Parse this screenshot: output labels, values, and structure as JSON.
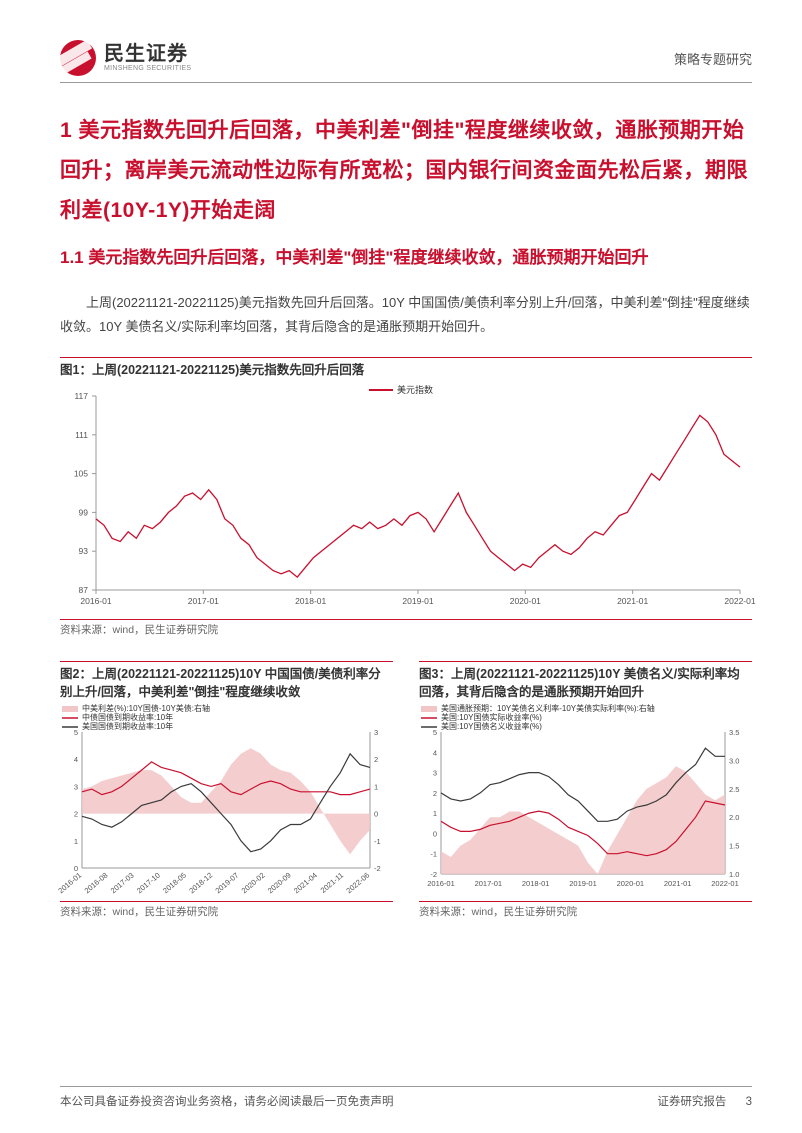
{
  "header": {
    "brand_cn": "民生证券",
    "brand_en": "MINSHENG SECURITIES",
    "doc_type": "策略专题研究"
  },
  "section_title": "1 美元指数先回升后回落，中美利差\"倒挂\"程度继续收敛，通胀预期开始回升；离岸美元流动性边际有所宽松；国内银行间资金面先松后紧，期限利差(10Y-1Y)开始走阔",
  "subsection_title": "1.1 美元指数先回升后回落，中美利差\"倒挂\"程度继续收敛，通胀预期开始回升",
  "paragraph": "上周(20221121-20221125)美元指数先回升后回落。10Y 中国国债/美债利率分别上升/回落，中美利差\"倒挂\"程度继续收敛。10Y 美债名义/实际利率均回落，其背后隐含的是通胀预期开始回升。",
  "fig1": {
    "title": "图1：上周(20221121-20221125)美元指数先回升后回落",
    "legend": "美元指数",
    "source": "资料来源：wind，民生证券研究院",
    "type": "line",
    "ylim": [
      87,
      117
    ],
    "ytick_step": 6,
    "x_labels": [
      "2016-01",
      "2017-01",
      "2018-01",
      "2019-01",
      "2020-01",
      "2021-01",
      "2022-01"
    ],
    "line_color": "#c8102e",
    "grid_color": "none",
    "axis_color": "#999",
    "label_fontsize": 9,
    "tick_fontsize": 8.5,
    "series": [
      [
        0,
        98
      ],
      [
        2,
        97
      ],
      [
        4,
        95
      ],
      [
        6,
        94.5
      ],
      [
        8,
        96
      ],
      [
        10,
        95
      ],
      [
        12,
        97
      ],
      [
        14,
        96.5
      ],
      [
        16,
        97.5
      ],
      [
        18,
        99
      ],
      [
        20,
        100
      ],
      [
        22,
        101.5
      ],
      [
        24,
        102
      ],
      [
        26,
        101
      ],
      [
        28,
        102.5
      ],
      [
        30,
        101
      ],
      [
        32,
        98
      ],
      [
        34,
        97
      ],
      [
        36,
        95
      ],
      [
        38,
        94
      ],
      [
        40,
        92
      ],
      [
        42,
        91
      ],
      [
        44,
        90
      ],
      [
        46,
        89.5
      ],
      [
        48,
        90
      ],
      [
        50,
        89
      ],
      [
        52,
        90.5
      ],
      [
        54,
        92
      ],
      [
        56,
        93
      ],
      [
        58,
        94
      ],
      [
        60,
        95
      ],
      [
        62,
        96
      ],
      [
        64,
        97
      ],
      [
        66,
        96.5
      ],
      [
        68,
        97.5
      ],
      [
        70,
        96.5
      ],
      [
        72,
        97
      ],
      [
        74,
        98
      ],
      [
        76,
        97
      ],
      [
        78,
        98.5
      ],
      [
        80,
        99
      ],
      [
        82,
        98
      ],
      [
        84,
        96
      ],
      [
        86,
        98
      ],
      [
        88,
        100
      ],
      [
        90,
        102
      ],
      [
        92,
        99
      ],
      [
        94,
        97
      ],
      [
        96,
        95
      ],
      [
        98,
        93
      ],
      [
        100,
        92
      ],
      [
        102,
        91
      ],
      [
        104,
        90
      ],
      [
        106,
        91
      ],
      [
        108,
        90.5
      ],
      [
        110,
        92
      ],
      [
        112,
        93
      ],
      [
        114,
        94
      ],
      [
        116,
        93
      ],
      [
        118,
        92.5
      ],
      [
        120,
        93.5
      ],
      [
        122,
        95
      ],
      [
        124,
        96
      ],
      [
        126,
        95.5
      ],
      [
        128,
        97
      ],
      [
        130,
        98.5
      ],
      [
        132,
        99
      ],
      [
        134,
        101
      ],
      [
        136,
        103
      ],
      [
        138,
        105
      ],
      [
        140,
        104
      ],
      [
        142,
        106
      ],
      [
        144,
        108
      ],
      [
        146,
        110
      ],
      [
        148,
        112
      ],
      [
        150,
        114
      ],
      [
        152,
        113
      ],
      [
        154,
        111
      ],
      [
        156,
        108
      ],
      [
        158,
        107
      ],
      [
        160,
        106
      ]
    ]
  },
  "fig2": {
    "title": "图2：上周(20221121-20221125)10Y 中国国债/美债利率分别上升/回落，中美利差\"倒挂\"程度继续收敛",
    "source": "资料来源：wind，民生证券研究院",
    "type": "line+area",
    "legend": {
      "a": "中美利差(%):10Y国债-10Y美债:右轴",
      "b": "中债国债到期收益率:10年",
      "c": "美国国债到期收益率:10年"
    },
    "ylim_left": [
      0,
      5
    ],
    "ytick_left": [
      0,
      1,
      2,
      3,
      4,
      5
    ],
    "ylim_right": [
      -2,
      3
    ],
    "ytick_right": [
      -2,
      -1,
      0,
      1,
      2,
      3
    ],
    "x_labels": [
      "2016-01",
      "2016-08",
      "2017-03",
      "2017-10",
      "2018-05",
      "2018-12",
      "2019-07",
      "2020-02",
      "2020-09",
      "2021-04",
      "2021-11",
      "2022-06"
    ],
    "area_color": "#f2c6c6",
    "line_b_color": "#c8102e",
    "line_c_color": "#3a3a3a",
    "axis_color": "#999",
    "tick_fontsize": 7.5,
    "legend_fontsize": 8,
    "area_series": [
      [
        0,
        0.9
      ],
      [
        5,
        1.0
      ],
      [
        10,
        1.2
      ],
      [
        15,
        1.3
      ],
      [
        20,
        1.4
      ],
      [
        25,
        1.5
      ],
      [
        30,
        1.6
      ],
      [
        35,
        1.6
      ],
      [
        40,
        1.4
      ],
      [
        45,
        1.0
      ],
      [
        50,
        0.6
      ],
      [
        55,
        0.4
      ],
      [
        60,
        0.4
      ],
      [
        65,
        0.8
      ],
      [
        70,
        1.2
      ],
      [
        75,
        1.8
      ],
      [
        80,
        2.2
      ],
      [
        85,
        2.4
      ],
      [
        90,
        2.2
      ],
      [
        95,
        1.8
      ],
      [
        100,
        1.6
      ],
      [
        105,
        1.5
      ],
      [
        110,
        1.2
      ],
      [
        115,
        0.8
      ],
      [
        120,
        0.2
      ],
      [
        125,
        -0.4
      ],
      [
        130,
        -1.0
      ],
      [
        135,
        -1.5
      ],
      [
        140,
        -1.0
      ],
      [
        145,
        -0.6
      ]
    ],
    "series_b": [
      [
        0,
        2.8
      ],
      [
        5,
        2.9
      ],
      [
        10,
        2.7
      ],
      [
        15,
        2.8
      ],
      [
        20,
        3.0
      ],
      [
        25,
        3.3
      ],
      [
        30,
        3.6
      ],
      [
        35,
        3.9
      ],
      [
        40,
        3.7
      ],
      [
        45,
        3.6
      ],
      [
        50,
        3.5
      ],
      [
        55,
        3.3
      ],
      [
        60,
        3.1
      ],
      [
        65,
        3.0
      ],
      [
        70,
        3.1
      ],
      [
        75,
        2.8
      ],
      [
        80,
        2.7
      ],
      [
        85,
        2.9
      ],
      [
        90,
        3.1
      ],
      [
        95,
        3.2
      ],
      [
        100,
        3.1
      ],
      [
        105,
        2.9
      ],
      [
        110,
        2.8
      ],
      [
        115,
        2.8
      ],
      [
        120,
        2.8
      ],
      [
        125,
        2.8
      ],
      [
        130,
        2.7
      ],
      [
        135,
        2.7
      ],
      [
        140,
        2.8
      ],
      [
        145,
        2.9
      ]
    ],
    "series_c": [
      [
        0,
        1.9
      ],
      [
        5,
        1.8
      ],
      [
        10,
        1.6
      ],
      [
        15,
        1.5
      ],
      [
        20,
        1.7
      ],
      [
        25,
        2.0
      ],
      [
        30,
        2.3
      ],
      [
        35,
        2.4
      ],
      [
        40,
        2.5
      ],
      [
        45,
        2.8
      ],
      [
        50,
        3.0
      ],
      [
        55,
        3.1
      ],
      [
        60,
        2.8
      ],
      [
        65,
        2.4
      ],
      [
        70,
        2.0
      ],
      [
        75,
        1.6
      ],
      [
        80,
        1.0
      ],
      [
        85,
        0.6
      ],
      [
        90,
        0.7
      ],
      [
        95,
        1.0
      ],
      [
        100,
        1.4
      ],
      [
        105,
        1.6
      ],
      [
        110,
        1.6
      ],
      [
        115,
        1.8
      ],
      [
        120,
        2.4
      ],
      [
        125,
        3.0
      ],
      [
        130,
        3.5
      ],
      [
        135,
        4.2
      ],
      [
        140,
        3.8
      ],
      [
        145,
        3.7
      ]
    ]
  },
  "fig3": {
    "title": "图3：上周(20221121-20221125)10Y 美债名义/实际利率均回落，其背后隐含的是通胀预期开始回升",
    "source": "资料来源：wind，民生证券研究院",
    "type": "line+area",
    "legend": {
      "a": "美国通胀预期：10Y美债名义利率-10Y美债实际利率(%):右轴",
      "b": "美国:10Y国债实际收益率(%)",
      "c": "美国:10Y国债名义收益率(%)"
    },
    "ylim_left": [
      -2,
      5
    ],
    "ytick_left": [
      -2,
      -1,
      0,
      1,
      2,
      3,
      4,
      5
    ],
    "ylim_right": [
      1.0,
      3.5
    ],
    "ytick_right": [
      1.0,
      1.5,
      2.0,
      2.5,
      3.0,
      3.5
    ],
    "x_labels": [
      "2016-01",
      "2017-01",
      "2018-01",
      "2019-01",
      "2020-01",
      "2021-01",
      "2022-01"
    ],
    "area_color": "#f2c6c6",
    "line_b_color": "#c8102e",
    "line_c_color": "#3a3a3a",
    "axis_color": "#999",
    "tick_fontsize": 7.5,
    "legend_fontsize": 8,
    "area_series": [
      [
        0,
        1.4
      ],
      [
        5,
        1.3
      ],
      [
        10,
        1.5
      ],
      [
        15,
        1.6
      ],
      [
        20,
        1.8
      ],
      [
        25,
        2.0
      ],
      [
        30,
        2.0
      ],
      [
        35,
        2.1
      ],
      [
        40,
        2.1
      ],
      [
        45,
        2.0
      ],
      [
        50,
        1.9
      ],
      [
        55,
        1.8
      ],
      [
        60,
        1.7
      ],
      [
        65,
        1.6
      ],
      [
        70,
        1.5
      ],
      [
        75,
        1.2
      ],
      [
        80,
        1.0
      ],
      [
        85,
        1.4
      ],
      [
        90,
        1.7
      ],
      [
        95,
        2.0
      ],
      [
        100,
        2.3
      ],
      [
        105,
        2.5
      ],
      [
        110,
        2.6
      ],
      [
        115,
        2.7
      ],
      [
        120,
        2.9
      ],
      [
        125,
        2.8
      ],
      [
        130,
        2.6
      ],
      [
        135,
        2.4
      ],
      [
        140,
        2.3
      ],
      [
        145,
        2.4
      ]
    ],
    "series_b": [
      [
        0,
        0.6
      ],
      [
        5,
        0.3
      ],
      [
        10,
        0.1
      ],
      [
        15,
        0.1
      ],
      [
        20,
        0.2
      ],
      [
        25,
        0.4
      ],
      [
        30,
        0.5
      ],
      [
        35,
        0.6
      ],
      [
        40,
        0.8
      ],
      [
        45,
        1.0
      ],
      [
        50,
        1.1
      ],
      [
        55,
        1.0
      ],
      [
        60,
        0.7
      ],
      [
        65,
        0.3
      ],
      [
        70,
        0.1
      ],
      [
        75,
        -0.1
      ],
      [
        80,
        -0.5
      ],
      [
        85,
        -1.0
      ],
      [
        90,
        -1.0
      ],
      [
        95,
        -0.9
      ],
      [
        100,
        -1.0
      ],
      [
        105,
        -1.1
      ],
      [
        110,
        -1.0
      ],
      [
        115,
        -0.8
      ],
      [
        120,
        -0.4
      ],
      [
        125,
        0.2
      ],
      [
        130,
        0.8
      ],
      [
        135,
        1.6
      ],
      [
        140,
        1.5
      ],
      [
        145,
        1.4
      ]
    ],
    "series_c": [
      [
        0,
        2.0
      ],
      [
        5,
        1.7
      ],
      [
        10,
        1.6
      ],
      [
        15,
        1.7
      ],
      [
        20,
        2.0
      ],
      [
        25,
        2.4
      ],
      [
        30,
        2.5
      ],
      [
        35,
        2.7
      ],
      [
        40,
        2.9
      ],
      [
        45,
        3.0
      ],
      [
        50,
        3.0
      ],
      [
        55,
        2.8
      ],
      [
        60,
        2.4
      ],
      [
        65,
        1.9
      ],
      [
        70,
        1.6
      ],
      [
        75,
        1.1
      ],
      [
        80,
        0.6
      ],
      [
        85,
        0.6
      ],
      [
        90,
        0.7
      ],
      [
        95,
        1.1
      ],
      [
        100,
        1.3
      ],
      [
        105,
        1.4
      ],
      [
        110,
        1.6
      ],
      [
        115,
        1.9
      ],
      [
        120,
        2.5
      ],
      [
        125,
        3.0
      ],
      [
        130,
        3.4
      ],
      [
        135,
        4.2
      ],
      [
        140,
        3.8
      ],
      [
        145,
        3.8
      ]
    ]
  },
  "footer": {
    "left": "本公司具备证券投资咨询业务资格，请务必阅读最后一页免责声明",
    "right_label": "证券研究报告",
    "page_num": "3"
  }
}
